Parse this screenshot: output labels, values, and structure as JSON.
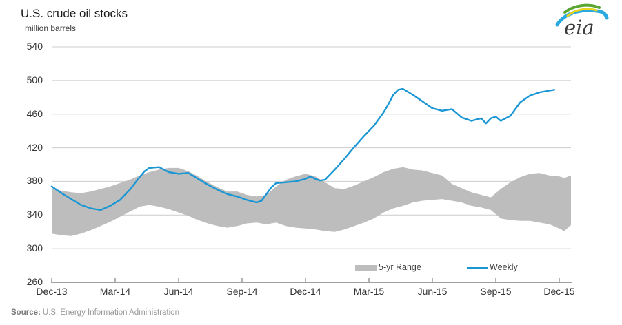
{
  "page": {
    "title": "U.S. crude oil stocks",
    "units_label": "million barrels"
  },
  "logo": {
    "text": "eia"
  },
  "legend": {
    "items": [
      {
        "label": "5-yr Range"
      },
      {
        "label": "Weekly"
      }
    ]
  },
  "source": {
    "prefix": "Source:",
    "text": "U.S. Energy Information Administration"
  },
  "colors": {
    "weekly_line": "#1b96d4",
    "band": "#bdbdbd",
    "grid": "#cccccc",
    "axis": "#808080",
    "logo_green": "#5aa632",
    "logo_yellow": "#e8d51f",
    "logo_blue": "#2aa9e0"
  },
  "chart_data": {
    "type": "line",
    "title": "U.S. crude oil stocks",
    "ylabel": "million barrels",
    "xlabel": "",
    "ylim": [
      260,
      540
    ],
    "yticks": [
      260,
      300,
      340,
      380,
      420,
      460,
      500,
      540
    ],
    "xtick_labels": [
      "Dec-13",
      "Mar-14",
      "Jun-14",
      "Sep-14",
      "Dec-14",
      "Mar-15",
      "Jun-15",
      "Sep-15",
      "Dec-15"
    ],
    "xtick_weeks": [
      0,
      13,
      26,
      39,
      52,
      65,
      78,
      91,
      104
    ],
    "x_unit": "weeks since Dec-2013",
    "grid": "horizontal",
    "legend_position": "bottom-inside",
    "series": [
      {
        "name": "5-yr Range",
        "type": "band",
        "color": "#bdbdbd",
        "weeks": [
          0,
          2,
          4,
          6,
          8,
          10,
          12,
          14,
          16,
          18,
          20,
          22,
          24,
          26,
          28,
          30,
          32,
          34,
          36,
          38,
          40,
          42,
          44,
          46,
          48,
          50,
          52,
          54,
          56,
          58,
          60,
          62,
          64,
          66,
          68,
          70,
          72,
          74,
          76,
          78,
          80,
          82,
          84,
          86,
          88,
          90,
          92,
          94,
          96,
          98,
          100,
          102,
          104,
          105,
          106.4
        ],
        "max": [
          372,
          369,
          367,
          366,
          368,
          371,
          374,
          378,
          382,
          387,
          391,
          394,
          396,
          396,
          392,
          386,
          379,
          373,
          368,
          368,
          364,
          362,
          364,
          374,
          382,
          386,
          389,
          386,
          379,
          372,
          371,
          375,
          380,
          385,
          391,
          395,
          397,
          394,
          393,
          390,
          387,
          377,
          372,
          367,
          364,
          361,
          371,
          379,
          385,
          389,
          390,
          387,
          386,
          384,
          387
        ],
        "min": [
          318,
          316,
          315,
          318,
          322,
          327,
          332,
          338,
          344,
          350,
          352,
          350,
          347,
          343,
          339,
          334,
          330,
          327,
          325,
          327,
          330,
          331,
          329,
          331,
          327,
          325,
          324,
          323,
          321,
          320,
          323,
          327,
          331,
          336,
          343,
          348,
          351,
          355,
          357,
          358,
          359,
          357,
          355,
          351,
          349,
          346,
          336,
          334,
          333,
          333,
          331,
          329,
          324,
          321,
          328
        ]
      },
      {
        "name": "Weekly",
        "type": "line",
        "color": "#1b96d4",
        "weeks": [
          0,
          2,
          4,
          6,
          8,
          10,
          12,
          14,
          16,
          18,
          19,
          20,
          22,
          24,
          26,
          28,
          30,
          32,
          34,
          36,
          38,
          40,
          42,
          43,
          44,
          45,
          46,
          48,
          50,
          52,
          53,
          54,
          55,
          56,
          58,
          60,
          62,
          64,
          66,
          68,
          69,
          70,
          71,
          72,
          74,
          76,
          78,
          80,
          82,
          84,
          86,
          88,
          89,
          90,
          91,
          92,
          94,
          96,
          98,
          100,
          102,
          103
        ],
        "values": [
          374,
          366,
          359,
          352,
          348,
          346,
          351,
          358,
          370,
          385,
          392,
          396,
          397,
          391,
          389,
          390,
          383,
          376,
          370,
          365,
          362,
          358,
          355,
          357,
          365,
          373,
          378,
          379,
          380,
          383,
          386,
          383,
          381,
          382,
          394,
          407,
          421,
          434,
          446,
          462,
          472,
          483,
          489,
          490,
          483,
          475,
          467,
          464,
          466,
          456,
          452,
          455,
          449,
          455,
          457,
          452,
          458,
          474,
          482,
          486,
          488,
          489
        ]
      }
    ]
  }
}
